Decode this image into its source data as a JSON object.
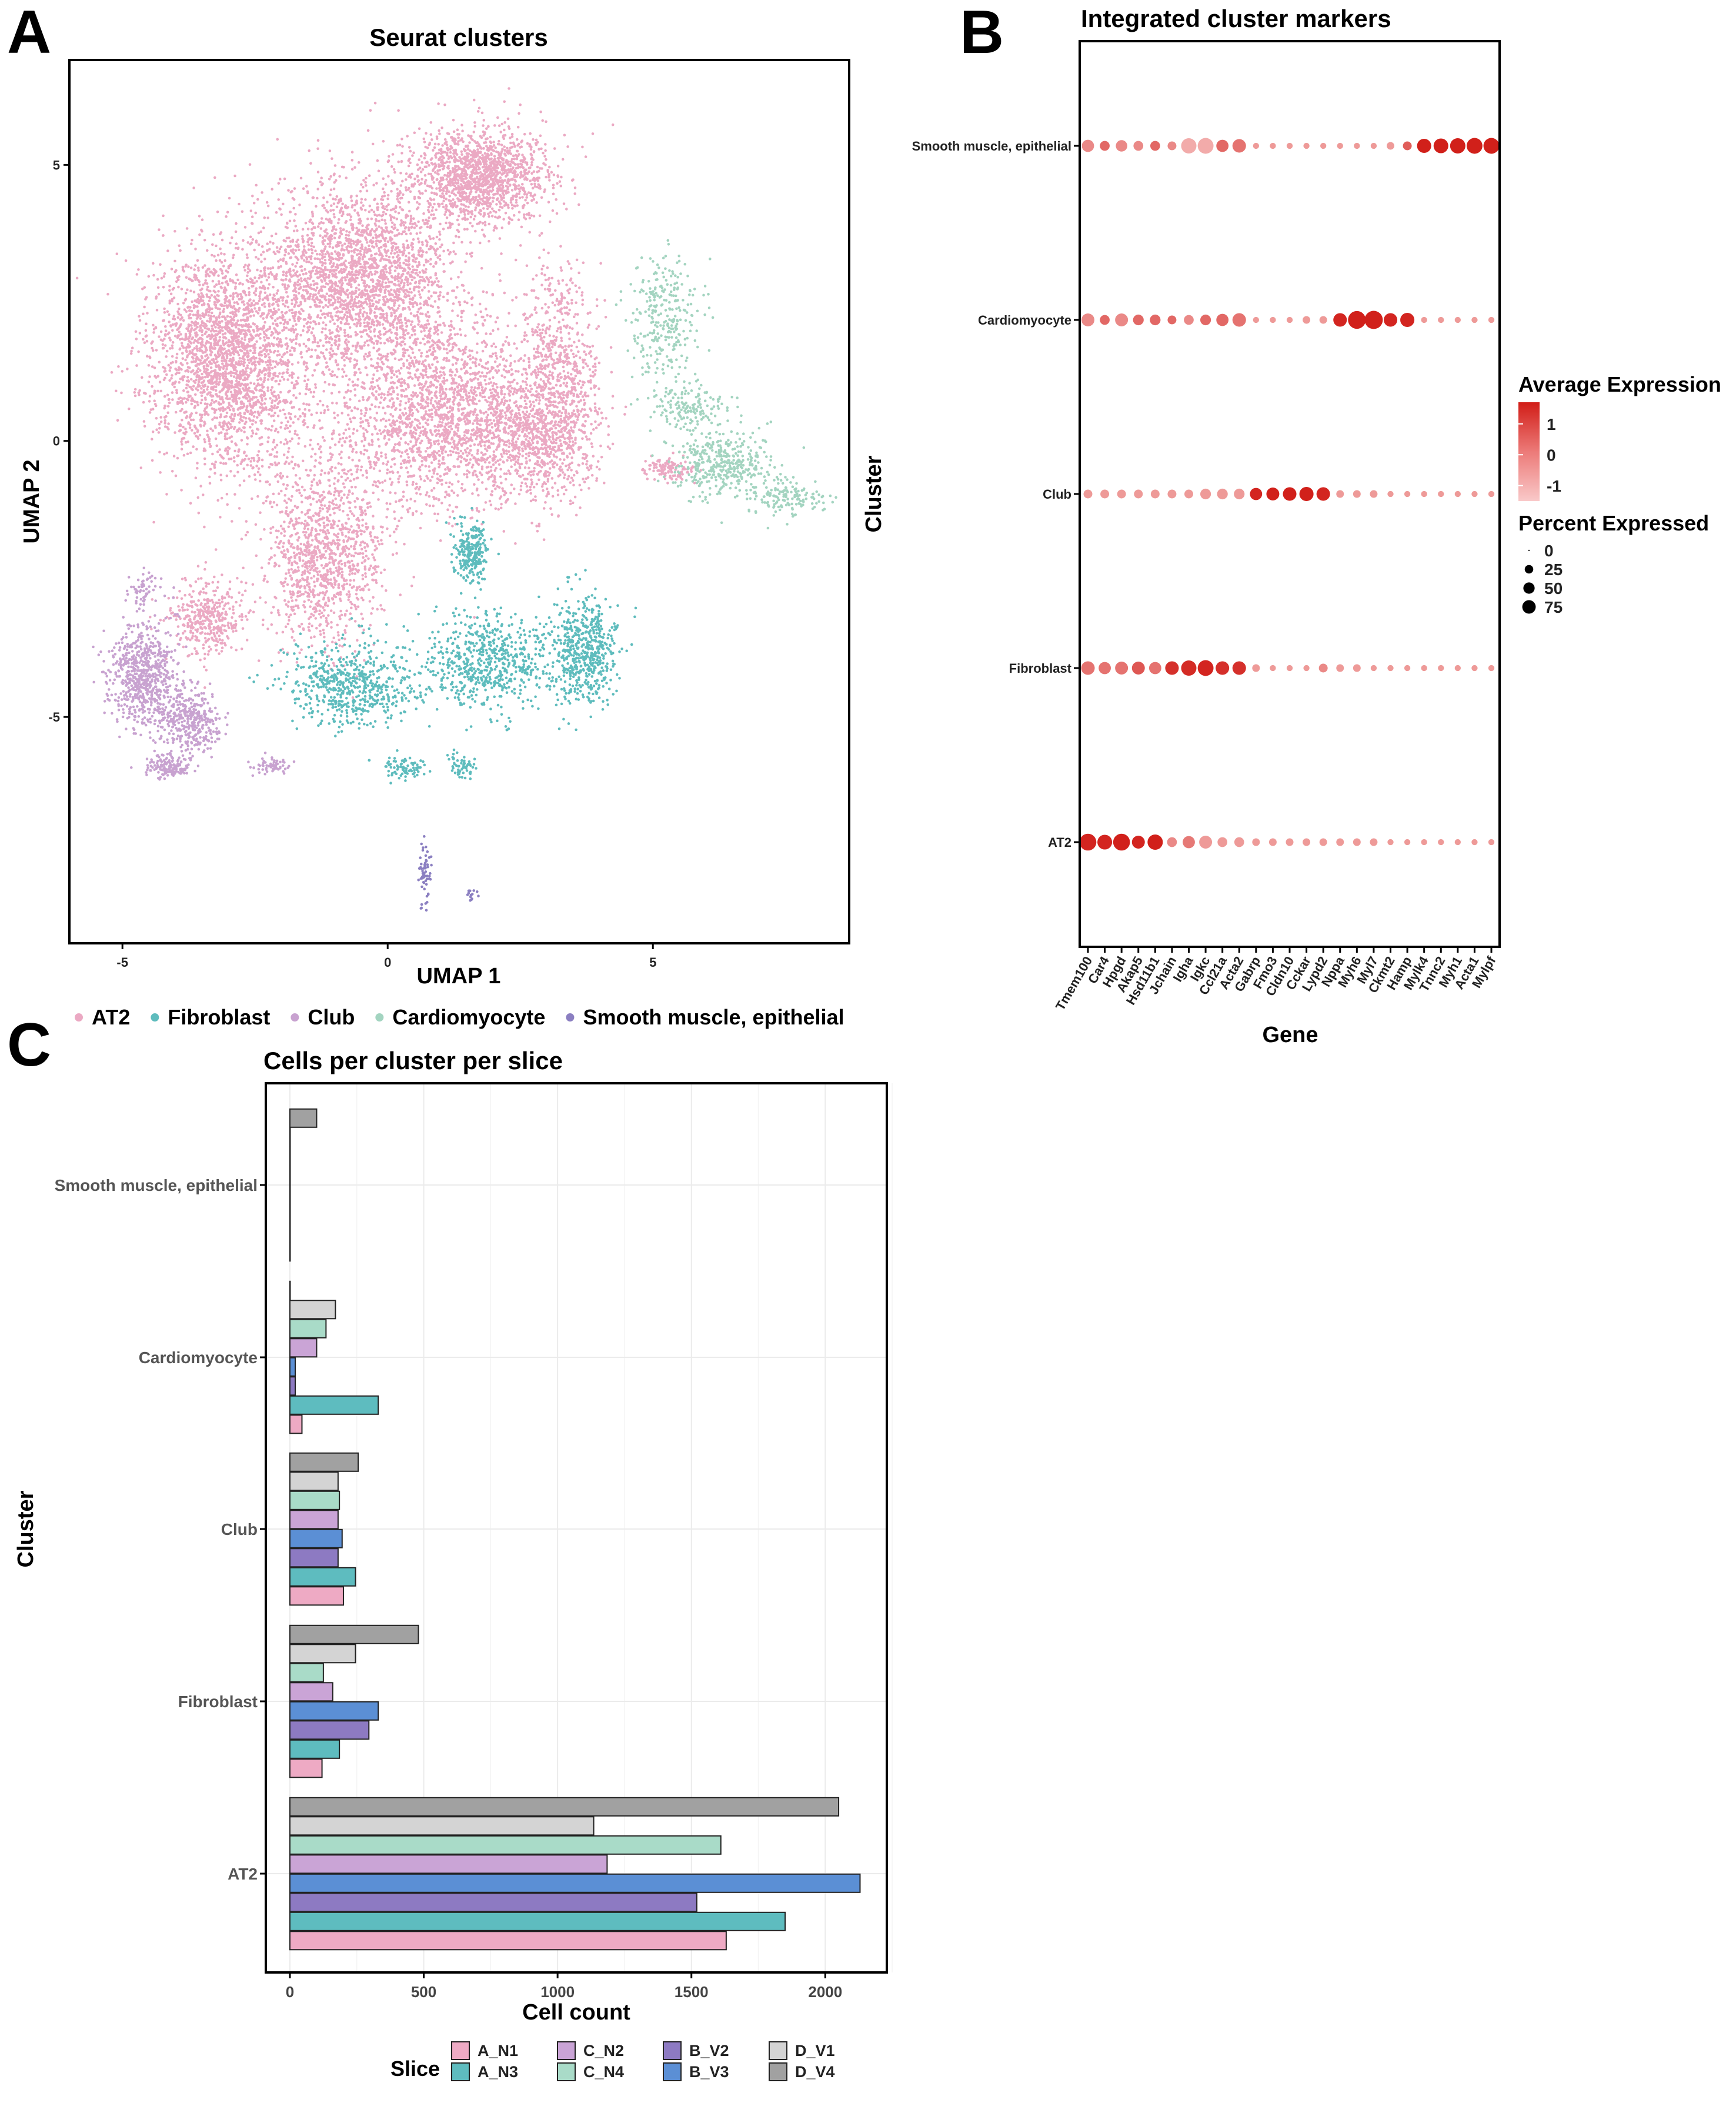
{
  "panels": {
    "A": {
      "letter": "A"
    },
    "B": {
      "letter": "B"
    },
    "C": {
      "letter": "C"
    }
  },
  "colors": {
    "AT2": "#eba9c3",
    "Fibroblast": "#5ebcbd",
    "Club": "#c8a2d0",
    "Cardiomyocyte": "#a3d4c0",
    "Smooth muscle, epithelial": "#8b7fc1",
    "A_N1": "#eeaac4",
    "A_N3": "#5ebcbf",
    "C_N2": "#caa4d6",
    "C_N4": "#a9dbc8",
    "B_V2": "#8d7ac2",
    "B_V3": "#5b8fd5",
    "D_V1": "#d4d4d4",
    "D_V4": "#a1a1a1"
  },
  "chart_data": [
    {
      "type": "scatter",
      "title": "Seurat clusters",
      "xlabel": "UMAP 1",
      "ylabel": "UMAP 2",
      "xlim": [
        -6,
        8.7
      ],
      "ylim": [
        -9.1,
        6.9
      ],
      "x_ticks": [
        {
          "v": -5,
          "label": "-5"
        },
        {
          "v": 0,
          "label": "0"
        },
        {
          "v": 5,
          "label": "5"
        }
      ],
      "y_ticks": [
        {
          "v": 5,
          "label": "5"
        },
        {
          "v": 0,
          "label": "0"
        },
        {
          "v": -5,
          "label": "-5"
        }
      ],
      "legend_title": "",
      "legend": [
        "AT2",
        "Fibroblast",
        "Club",
        "Cardiomyocyte",
        "Smooth muscle, epithelial"
      ],
      "legend_position": "bottom",
      "clusters": [
        {
          "name": "AT2",
          "regions": [
            [
              -3.0,
              1.5,
              1.3,
              1.8,
              2600
            ],
            [
              -0.5,
              3.0,
              1.6,
              1.5,
              2400
            ],
            [
              1.7,
              4.8,
              1.2,
              0.8,
              1500
            ],
            [
              1.0,
              0.5,
              1.9,
              1.5,
              2200
            ],
            [
              3.2,
              1.2,
              0.7,
              1.8,
              700
            ],
            [
              -1.2,
              -2.0,
              1.0,
              1.5,
              1200
            ],
            [
              -3.4,
              -3.2,
              0.7,
              0.6,
              400
            ],
            [
              5.3,
              -0.5,
              0.4,
              0.2,
              120
            ],
            [
              2.8,
              0.0,
              1.0,
              1.0,
              600
            ]
          ]
        },
        {
          "name": "Fibroblast",
          "regions": [
            [
              -0.7,
              -4.4,
              1.1,
              0.7,
              600
            ],
            [
              1.9,
              -4.0,
              1.2,
              0.8,
              650
            ],
            [
              3.7,
              -3.8,
              0.6,
              0.9,
              550
            ],
            [
              1.6,
              -2.0,
              0.3,
              0.5,
              250
            ],
            [
              0.3,
              -5.9,
              0.4,
              0.2,
              80
            ],
            [
              1.4,
              -5.9,
              0.3,
              0.2,
              60
            ]
          ]
        },
        {
          "name": "Club",
          "regions": [
            [
              -4.6,
              -4.3,
              0.6,
              0.8,
              700
            ],
            [
              -3.7,
              -5.1,
              0.5,
              0.5,
              350
            ],
            [
              -4.1,
              -5.9,
              0.4,
              0.2,
              150
            ],
            [
              -2.2,
              -5.9,
              0.3,
              0.15,
              60
            ],
            [
              -4.6,
              -2.7,
              0.3,
              0.3,
              60
            ]
          ]
        },
        {
          "name": "Cardiomyocyte",
          "regions": [
            [
              5.2,
              2.2,
              0.6,
              1.1,
              300
            ],
            [
              6.3,
              -0.4,
              0.9,
              0.6,
              400
            ],
            [
              7.5,
              -1.0,
              0.7,
              0.3,
              150
            ],
            [
              5.7,
              0.6,
              0.6,
              0.4,
              150
            ]
          ]
        },
        {
          "name": "Smooth muscle, epithelial",
          "regions": [
            [
              0.7,
              -7.8,
              0.1,
              0.6,
              60
            ],
            [
              1.6,
              -8.2,
              0.1,
              0.15,
              15
            ]
          ]
        }
      ]
    },
    {
      "type": "scatter",
      "title": "Integrated cluster markers",
      "xlabel": "Gene",
      "ylabel": "Cluster",
      "genes": [
        "Tmem100",
        "Car4",
        "Hpgd",
        "Akap5",
        "Hsd11b1",
        "Jchain",
        "Igha",
        "Igkc",
        "Ccl21a",
        "Acta2",
        "Gabrp",
        "Fmo3",
        "Cldn10",
        "Cckar",
        "Lypd2",
        "Nppa",
        "Myh6",
        "Myl7",
        "Ckmt2",
        "Hamp",
        "Mylk4",
        "Tnnc2",
        "Myh1",
        "Acta1",
        "Mylpf"
      ],
      "clusters": [
        "AT2",
        "Fibroblast",
        "Club",
        "Cardiomyocyte",
        "Smooth muscle, epithelial"
      ],
      "color_legend_title": "Average Expression",
      "color_range": [
        -1.5,
        1.7
      ],
      "color_ticks": [
        {
          "v": 1,
          "label": "1"
        },
        {
          "v": 0,
          "label": "0"
        },
        {
          "v": -1,
          "label": "-1"
        }
      ],
      "size_legend_title": "Percent Expressed",
      "size_legend": [
        {
          "v": 0,
          "label": "0"
        },
        {
          "v": 25,
          "label": "25"
        },
        {
          "v": 50,
          "label": "50"
        },
        {
          "v": 75,
          "label": "75"
        }
      ],
      "expression": [
        [
          1.5,
          1.5,
          1.6,
          1.5,
          1.6,
          -0.3,
          0.0,
          -0.6,
          -0.6,
          -0.6,
          -0.6,
          -0.6,
          -0.6,
          -0.6,
          -0.6,
          -0.6,
          -0.6,
          -0.6,
          -0.6,
          -0.6,
          -0.6,
          -0.6,
          -0.6,
          -0.6,
          -0.6
        ],
        [
          0.1,
          0.1,
          0.1,
          0.6,
          0.1,
          1.3,
          1.4,
          1.5,
          1.3,
          1.3,
          -0.6,
          -0.6,
          -0.6,
          -0.6,
          -0.3,
          -0.6,
          -0.6,
          -0.6,
          -0.6,
          -0.6,
          -0.6,
          -0.6,
          -0.6,
          -0.6,
          -0.6
        ],
        [
          -0.6,
          -0.6,
          -0.6,
          -0.6,
          -0.6,
          -0.6,
          -0.6,
          -0.6,
          -0.6,
          -0.6,
          1.5,
          1.6,
          1.6,
          1.6,
          1.5,
          -0.6,
          -0.6,
          -0.6,
          -0.6,
          -0.6,
          -0.6,
          -0.6,
          -0.6,
          -0.6,
          -0.6
        ],
        [
          -0.3,
          0.3,
          -0.3,
          0.3,
          0.3,
          0.3,
          -0.3,
          0.3,
          0.3,
          0.1,
          -0.6,
          -0.6,
          -0.6,
          -0.6,
          -0.6,
          1.5,
          1.6,
          1.6,
          1.5,
          1.5,
          -0.6,
          -0.6,
          -0.6,
          -0.6,
          -0.6
        ],
        [
          -0.3,
          0.3,
          -0.3,
          -0.3,
          0.3,
          -0.3,
          -0.9,
          -0.9,
          0.3,
          0.1,
          -0.6,
          -0.6,
          -0.6,
          -0.6,
          -0.6,
          -0.6,
          -0.6,
          -0.6,
          -0.6,
          0.5,
          1.6,
          1.6,
          1.6,
          1.6,
          1.6
        ]
      ],
      "percent": [
        [
          75,
          55,
          75,
          40,
          60,
          20,
          35,
          40,
          20,
          20,
          10,
          10,
          10,
          10,
          10,
          10,
          10,
          10,
          5,
          5,
          5,
          5,
          5,
          5,
          5
        ],
        [
          45,
          35,
          40,
          40,
          35,
          45,
          60,
          65,
          45,
          45,
          10,
          5,
          5,
          5,
          15,
          10,
          10,
          5,
          5,
          5,
          5,
          5,
          5,
          5,
          5
        ],
        [
          15,
          15,
          15,
          15,
          15,
          15,
          15,
          25,
          25,
          25,
          35,
          40,
          45,
          50,
          45,
          10,
          10,
          10,
          5,
          5,
          5,
          5,
          5,
          5,
          5
        ],
        [
          40,
          20,
          40,
          25,
          25,
          15,
          20,
          25,
          35,
          45,
          5,
          5,
          5,
          10,
          10,
          45,
          85,
          90,
          45,
          50,
          5,
          5,
          5,
          5,
          5
        ],
        [
          35,
          20,
          30,
          20,
          20,
          15,
          60,
          65,
          35,
          45,
          5,
          5,
          5,
          5,
          5,
          5,
          5,
          5,
          10,
          15,
          50,
          55,
          60,
          65,
          65
        ]
      ]
    },
    {
      "type": "bar",
      "orientation": "horizontal",
      "title": "Cells per cluster per slice",
      "xlabel": "Cell count",
      "ylabel": "Cluster",
      "xlim": [
        -90,
        2230
      ],
      "x_ticks": [
        0,
        500,
        1000,
        1500,
        2000
      ],
      "categories": [
        "AT2",
        "Fibroblast",
        "Club",
        "Cardiomyocyte",
        "Smooth muscle, epithelial"
      ],
      "legend_title": "Slice",
      "legend": [
        [
          "A_N1",
          "C_N2",
          "B_V2",
          "D_V1"
        ],
        [
          "A_N3",
          "C_N4",
          "B_V3",
          "D_V4"
        ]
      ],
      "legend_position": "bottom",
      "series": [
        {
          "name": "A_N1",
          "values": [
            1630,
            120,
            200,
            45,
            0
          ]
        },
        {
          "name": "A_N3",
          "values": [
            1850,
            185,
            245,
            330,
            0
          ]
        },
        {
          "name": "B_V2",
          "values": [
            1520,
            295,
            180,
            20,
            0
          ]
        },
        {
          "name": "B_V3",
          "values": [
            2130,
            330,
            195,
            20,
            0
          ]
        },
        {
          "name": "C_N2",
          "values": [
            1185,
            160,
            180,
            100,
            0
          ]
        },
        {
          "name": "C_N4",
          "values": [
            1610,
            125,
            185,
            135,
            0
          ]
        },
        {
          "name": "D_V1",
          "values": [
            1135,
            245,
            180,
            170,
            0
          ]
        },
        {
          "name": "D_V4",
          "values": [
            2050,
            480,
            255,
            0,
            100
          ]
        }
      ]
    }
  ]
}
